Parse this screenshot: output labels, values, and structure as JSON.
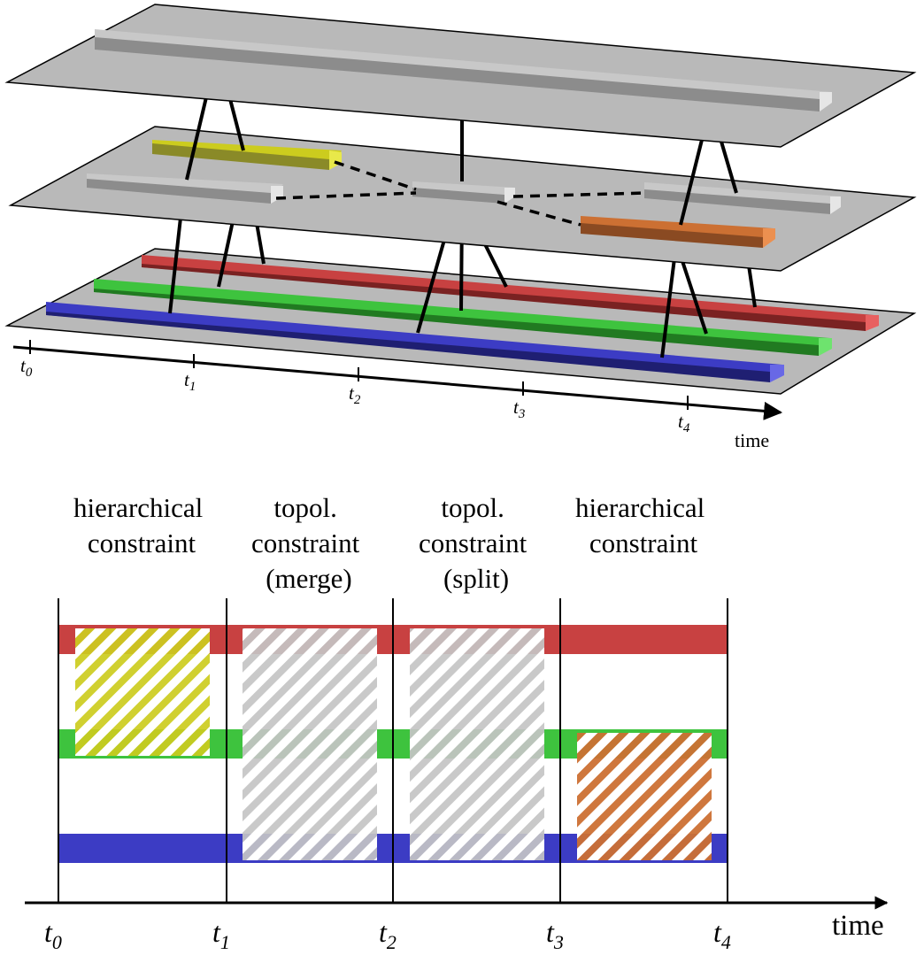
{
  "colors": {
    "plane": "#b9b9b9",
    "red": "#c84141",
    "green": "#3ec33e",
    "blue": "#3c3cc4",
    "yellow": "#cccc1e",
    "gray": "#c4c4c4",
    "orange": "#cc7033"
  },
  "top_axis": {
    "ticks": [
      {
        "base": "t",
        "sub": "0"
      },
      {
        "base": "t",
        "sub": "1"
      },
      {
        "base": "t",
        "sub": "2"
      },
      {
        "base": "t",
        "sub": "3"
      },
      {
        "base": "t",
        "sub": "4"
      }
    ],
    "time_label": "time"
  },
  "columns": [
    {
      "lines": [
        "hierarchical",
        "constraint"
      ]
    },
    {
      "lines": [
        "topol.",
        "constraint",
        "(merge)"
      ]
    },
    {
      "lines": [
        "topol.",
        "constraint",
        "(split)"
      ]
    },
    {
      "lines": [
        "hierarchical",
        "constraint"
      ]
    }
  ],
  "bottom_axis": {
    "ticks": [
      {
        "base": "t",
        "sub": "0"
      },
      {
        "base": "t",
        "sub": "1"
      },
      {
        "base": "t",
        "sub": "2"
      },
      {
        "base": "t",
        "sub": "3"
      },
      {
        "base": "t",
        "sub": "4"
      }
    ],
    "time_label": "time"
  }
}
